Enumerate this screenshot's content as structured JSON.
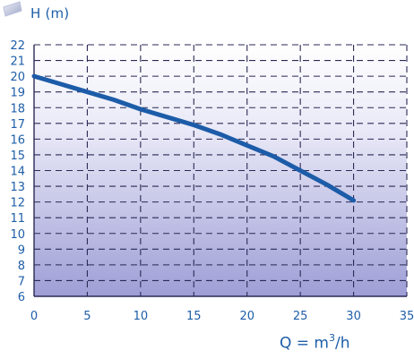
{
  "chart_data": {
    "type": "line",
    "ylabel": "H (m)",
    "xlabel": "Q = m3/h",
    "xlim": [
      0,
      35
    ],
    "ylim": [
      6,
      22
    ],
    "x_ticks": [
      0,
      5,
      10,
      15,
      20,
      25,
      30,
      35
    ],
    "y_ticks": [
      6,
      7,
      8,
      9,
      10,
      11,
      12,
      13,
      14,
      15,
      16,
      17,
      18,
      19,
      20,
      21,
      22
    ],
    "grid": true,
    "series": [
      {
        "color": "#1c5ca8",
        "x": [
          0,
          2.5,
          5,
          7.5,
          10,
          12.5,
          15,
          17.5,
          20,
          22.5,
          25,
          27.5,
          30
        ],
        "y": [
          20.0,
          19.5,
          19.0,
          18.5,
          17.9,
          17.4,
          16.9,
          16.3,
          15.6,
          14.9,
          14.0,
          13.1,
          12.1
        ]
      }
    ],
    "colors": {
      "axis_text": "#1e5ea8",
      "gradient_top": "#ffffff",
      "gradient_bottom": "#9e9ed6",
      "grid": "#2a2a55"
    }
  }
}
